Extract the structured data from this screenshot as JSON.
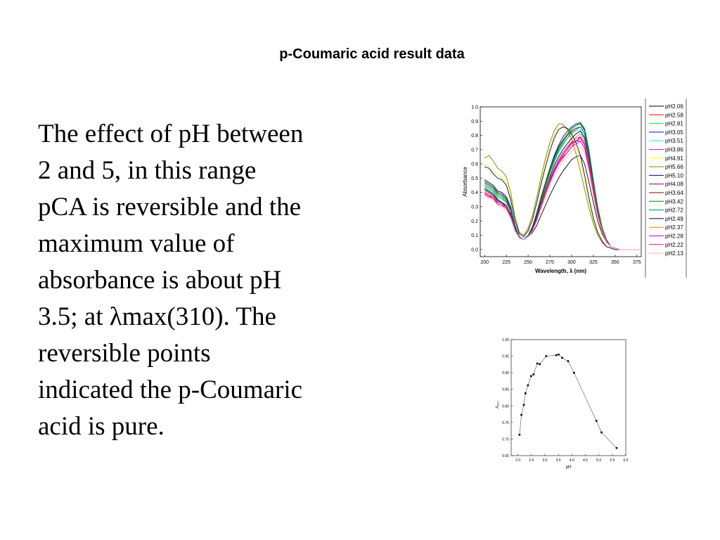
{
  "slide": {
    "title": "p-Coumaric acid result data",
    "body_lines": [
      "The effect of pH between",
      "2 and 5, in this range",
      "pCA is reversible and the",
      "maximum value of",
      "absorbance is about pH",
      "3.5; at λmax(310). The",
      "reversible points",
      "indicated the p-Coumaric",
      "acid is pure."
    ]
  },
  "chart_data": [
    {
      "type": "line",
      "title": "",
      "xlabel": "Wavelength, λ (nm)",
      "ylabel": "Absorbance",
      "xlim": [
        195,
        380
      ],
      "ylim": [
        -0.05,
        1.0
      ],
      "xticks": [
        200,
        225,
        250,
        275,
        300,
        325,
        350,
        375
      ],
      "yticks": [
        0.0,
        0.1,
        0.2,
        0.3,
        0.4,
        0.5,
        0.6,
        0.7,
        0.8,
        0.9,
        1.0
      ],
      "legend_position": "right",
      "x": [
        200,
        205,
        210,
        215,
        220,
        225,
        230,
        235,
        240,
        245,
        250,
        255,
        260,
        265,
        270,
        275,
        280,
        285,
        290,
        295,
        300,
        305,
        310,
        315,
        320,
        325,
        330,
        335,
        340,
        345,
        350,
        355,
        360,
        365,
        370,
        375,
        380
      ],
      "series": [
        {
          "name": "pH2.06",
          "color": "#000000",
          "values": [
            0.43,
            0.41,
            0.39,
            0.35,
            0.33,
            0.3,
            0.23,
            0.13,
            0.08,
            0.07,
            0.09,
            0.12,
            0.17,
            0.24,
            0.31,
            0.38,
            0.44,
            0.5,
            0.55,
            0.59,
            0.63,
            0.65,
            0.66,
            0.6,
            0.47,
            0.33,
            0.2,
            0.11,
            0.05,
            0.02,
            0.01,
            0.0,
            0.0,
            0.0,
            0.0,
            0.0,
            0.0
          ]
        },
        {
          "name": "pH2.58",
          "color": "#ff0000",
          "values": [
            0.4,
            0.38,
            0.37,
            0.33,
            0.32,
            0.3,
            0.24,
            0.14,
            0.08,
            0.07,
            0.09,
            0.14,
            0.22,
            0.31,
            0.4,
            0.48,
            0.55,
            0.61,
            0.65,
            0.68,
            0.72,
            0.76,
            0.79,
            0.74,
            0.59,
            0.41,
            0.25,
            0.13,
            0.06,
            0.02,
            0.01,
            0.0,
            0.0,
            0.0,
            0.0,
            0.0,
            0.0
          ]
        },
        {
          "name": "pH2.81",
          "color": "#00ff00",
          "values": [
            0.46,
            0.44,
            0.42,
            0.38,
            0.37,
            0.34,
            0.28,
            0.16,
            0.09,
            0.07,
            0.1,
            0.16,
            0.25,
            0.35,
            0.45,
            0.55,
            0.63,
            0.7,
            0.75,
            0.8,
            0.84,
            0.87,
            0.89,
            0.85,
            0.7,
            0.49,
            0.3,
            0.16,
            0.07,
            0.02,
            0.01,
            0.0,
            0.0,
            0.0,
            0.0,
            0.0,
            0.0
          ]
        },
        {
          "name": "pH3.05",
          "color": "#0000ff",
          "values": [
            0.49,
            0.47,
            0.45,
            0.41,
            0.4,
            0.37,
            0.3,
            0.17,
            0.09,
            0.07,
            0.1,
            0.16,
            0.26,
            0.37,
            0.47,
            0.57,
            0.66,
            0.73,
            0.79,
            0.83,
            0.86,
            0.88,
            0.89,
            0.84,
            0.69,
            0.48,
            0.29,
            0.15,
            0.07,
            0.02,
            0.01,
            0.0,
            0.0,
            0.0,
            0.0,
            0.0,
            0.0
          ]
        },
        {
          "name": "pH3.51",
          "color": "#00ffff",
          "values": [
            0.44,
            0.42,
            0.4,
            0.36,
            0.35,
            0.33,
            0.27,
            0.15,
            0.08,
            0.07,
            0.1,
            0.15,
            0.24,
            0.34,
            0.44,
            0.53,
            0.61,
            0.68,
            0.73,
            0.78,
            0.81,
            0.83,
            0.84,
            0.79,
            0.64,
            0.45,
            0.27,
            0.14,
            0.06,
            0.02,
            0.01,
            0.0,
            0.0,
            0.0,
            0.0,
            0.0,
            0.0
          ]
        },
        {
          "name": "pH3.86",
          "color": "#ff00ff",
          "values": [
            0.39,
            0.37,
            0.36,
            0.32,
            0.31,
            0.29,
            0.23,
            0.13,
            0.08,
            0.07,
            0.09,
            0.14,
            0.22,
            0.31,
            0.4,
            0.49,
            0.56,
            0.62,
            0.67,
            0.71,
            0.75,
            0.78,
            0.79,
            0.74,
            0.59,
            0.41,
            0.25,
            0.13,
            0.06,
            0.02,
            0.01,
            0.0,
            0.0,
            0.0,
            0.0,
            0.0,
            0.0
          ]
        },
        {
          "name": "pH4.91",
          "color": "#ffff00",
          "values": [
            0.6,
            0.58,
            0.55,
            0.52,
            0.51,
            0.47,
            0.37,
            0.22,
            0.12,
            0.1,
            0.14,
            0.22,
            0.34,
            0.48,
            0.61,
            0.72,
            0.8,
            0.85,
            0.86,
            0.84,
            0.79,
            0.72,
            0.62,
            0.48,
            0.33,
            0.2,
            0.11,
            0.05,
            0.02,
            0.01,
            0.0,
            0.0,
            0.0,
            0.0,
            0.0,
            0.0,
            0.0
          ]
        },
        {
          "name": "pH5.66",
          "color": "#808000",
          "values": [
            0.64,
            0.66,
            0.62,
            0.57,
            0.55,
            0.51,
            0.4,
            0.23,
            0.12,
            0.1,
            0.15,
            0.24,
            0.37,
            0.51,
            0.64,
            0.75,
            0.83,
            0.88,
            0.88,
            0.84,
            0.77,
            0.67,
            0.55,
            0.42,
            0.29,
            0.18,
            0.1,
            0.05,
            0.02,
            0.01,
            0.0,
            0.0,
            0.0,
            0.0,
            0.0,
            0.0,
            0.0
          ]
        },
        {
          "name": "pH5.10",
          "color": "#000080",
          "values": [
            0.58,
            0.57,
            0.53,
            0.5,
            0.49,
            0.45,
            0.35,
            0.2,
            0.11,
            0.09,
            0.13,
            0.21,
            0.33,
            0.46,
            0.58,
            0.69,
            0.78,
            0.84,
            0.86,
            0.85,
            0.81,
            0.75,
            0.66,
            0.52,
            0.36,
            0.22,
            0.12,
            0.06,
            0.02,
            0.01,
            0.0,
            0.0,
            0.0,
            0.0,
            0.0,
            0.0,
            0.0
          ]
        },
        {
          "name": "pH4.08",
          "color": "#800080",
          "values": [
            0.38,
            0.36,
            0.35,
            0.31,
            0.3,
            0.28,
            0.22,
            0.13,
            0.08,
            0.07,
            0.09,
            0.14,
            0.22,
            0.31,
            0.4,
            0.49,
            0.57,
            0.63,
            0.68,
            0.72,
            0.75,
            0.76,
            0.76,
            0.71,
            0.57,
            0.4,
            0.24,
            0.13,
            0.06,
            0.02,
            0.01,
            0.0,
            0.0,
            0.0,
            0.0,
            0.0,
            0.0
          ]
        },
        {
          "name": "pH3.64",
          "color": "#800000",
          "values": [
            0.47,
            0.45,
            0.43,
            0.39,
            0.38,
            0.35,
            0.28,
            0.16,
            0.09,
            0.07,
            0.1,
            0.16,
            0.25,
            0.36,
            0.46,
            0.56,
            0.64,
            0.71,
            0.76,
            0.8,
            0.83,
            0.85,
            0.86,
            0.81,
            0.66,
            0.46,
            0.28,
            0.15,
            0.07,
            0.02,
            0.01,
            0.0,
            0.0,
            0.0,
            0.0,
            0.0,
            0.0
          ]
        },
        {
          "name": "pH3.42",
          "color": "#008000",
          "values": [
            0.48,
            0.46,
            0.44,
            0.4,
            0.39,
            0.36,
            0.29,
            0.17,
            0.09,
            0.07,
            0.1,
            0.16,
            0.26,
            0.37,
            0.47,
            0.57,
            0.65,
            0.72,
            0.77,
            0.81,
            0.85,
            0.87,
            0.88,
            0.83,
            0.68,
            0.47,
            0.29,
            0.15,
            0.07,
            0.02,
            0.01,
            0.0,
            0.0,
            0.0,
            0.0,
            0.0,
            0.0
          ]
        },
        {
          "name": "pH2.72",
          "color": "#008080",
          "values": [
            0.45,
            0.43,
            0.41,
            0.37,
            0.36,
            0.33,
            0.27,
            0.15,
            0.09,
            0.07,
            0.1,
            0.15,
            0.24,
            0.34,
            0.44,
            0.54,
            0.62,
            0.69,
            0.74,
            0.78,
            0.82,
            0.84,
            0.86,
            0.81,
            0.66,
            0.46,
            0.28,
            0.15,
            0.07,
            0.02,
            0.01,
            0.0,
            0.0,
            0.0,
            0.0,
            0.0,
            0.0
          ]
        },
        {
          "name": "pH2.49",
          "color": "#000040",
          "values": [
            0.42,
            0.4,
            0.38,
            0.34,
            0.33,
            0.31,
            0.25,
            0.14,
            0.08,
            0.07,
            0.09,
            0.15,
            0.23,
            0.33,
            0.42,
            0.51,
            0.59,
            0.65,
            0.7,
            0.74,
            0.78,
            0.81,
            0.83,
            0.78,
            0.63,
            0.44,
            0.27,
            0.14,
            0.06,
            0.02,
            0.01,
            0.0,
            0.0,
            0.0,
            0.0,
            0.0,
            0.0
          ]
        },
        {
          "name": "pH2.37",
          "color": "#ff8000",
          "values": [
            0.41,
            0.39,
            0.37,
            0.33,
            0.32,
            0.3,
            0.24,
            0.14,
            0.08,
            0.07,
            0.09,
            0.14,
            0.22,
            0.32,
            0.41,
            0.5,
            0.57,
            0.63,
            0.68,
            0.72,
            0.76,
            0.79,
            0.81,
            0.76,
            0.61,
            0.43,
            0.26,
            0.14,
            0.06,
            0.02,
            0.01,
            0.0,
            0.0,
            0.0,
            0.0,
            0.0,
            0.0
          ]
        },
        {
          "name": "pH2.28",
          "color": "#c000ff",
          "values": [
            0.4,
            0.38,
            0.36,
            0.33,
            0.32,
            0.29,
            0.24,
            0.14,
            0.08,
            0.07,
            0.09,
            0.14,
            0.22,
            0.31,
            0.4,
            0.48,
            0.55,
            0.61,
            0.66,
            0.7,
            0.74,
            0.76,
            0.78,
            0.73,
            0.59,
            0.41,
            0.25,
            0.13,
            0.06,
            0.02,
            0.01,
            0.0,
            0.0,
            0.0,
            0.0,
            0.0,
            0.0
          ]
        },
        {
          "name": "pH2.22",
          "color": "#ff0080",
          "values": [
            0.39,
            0.37,
            0.36,
            0.32,
            0.31,
            0.29,
            0.23,
            0.13,
            0.08,
            0.07,
            0.09,
            0.13,
            0.21,
            0.3,
            0.39,
            0.47,
            0.54,
            0.6,
            0.64,
            0.68,
            0.72,
            0.74,
            0.76,
            0.71,
            0.57,
            0.4,
            0.24,
            0.13,
            0.06,
            0.02,
            0.01,
            0.0,
            0.0,
            0.0,
            0.0,
            0.0,
            0.0
          ]
        },
        {
          "name": "pH2.13",
          "color": "#ffb0b0",
          "values": [
            0.38,
            0.36,
            0.35,
            0.31,
            0.3,
            0.28,
            0.22,
            0.13,
            0.08,
            0.07,
            0.09,
            0.13,
            0.2,
            0.29,
            0.37,
            0.45,
            0.52,
            0.57,
            0.62,
            0.65,
            0.69,
            0.71,
            0.72,
            0.68,
            0.55,
            0.38,
            0.23,
            0.12,
            0.05,
            0.02,
            0.01,
            0.0,
            0.0,
            0.0,
            0.0,
            0.0,
            0.0
          ]
        }
      ]
    },
    {
      "type": "line",
      "title": "",
      "xlabel": "pH",
      "ylabel": "A₃₁₀",
      "xlim": [
        1.75,
        6.0
      ],
      "ylim": [
        0.65,
        1.0
      ],
      "xticks": [
        2.0,
        2.5,
        3.0,
        3.5,
        4.0,
        4.5,
        5.0,
        5.5,
        6.0
      ],
      "yticks": [
        0.65,
        0.7,
        0.75,
        0.8,
        0.85,
        0.9,
        0.95,
        1.0
      ],
      "series": [
        {
          "name": "",
          "color": "#000000",
          "x": [
            2.06,
            2.13,
            2.22,
            2.28,
            2.37,
            2.49,
            2.58,
            2.72,
            2.81,
            3.05,
            3.42,
            3.51,
            3.64,
            3.86,
            4.08,
            4.91,
            5.1,
            5.66
          ],
          "values": [
            0.713,
            0.773,
            0.803,
            0.838,
            0.862,
            0.89,
            0.895,
            0.928,
            0.926,
            0.95,
            0.953,
            0.955,
            0.945,
            0.935,
            0.9,
            0.755,
            0.72,
            0.673
          ]
        }
      ]
    }
  ]
}
